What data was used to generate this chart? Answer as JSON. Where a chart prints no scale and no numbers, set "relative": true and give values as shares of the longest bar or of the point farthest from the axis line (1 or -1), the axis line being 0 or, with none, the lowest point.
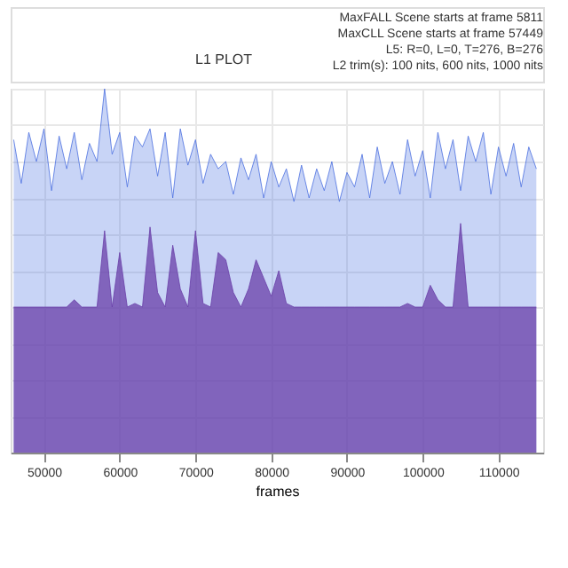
{
  "chart_data": {
    "type": "area",
    "title": "L1 PLOT",
    "xlabel": "frames",
    "relative": true,
    "grid": true,
    "annotations": [
      "MaxFALL Scene starts at frame 5811",
      "MaxCLL Scene starts at frame 57449",
      "L5: R=0, L=0, T=276, B=276",
      "L2 trim(s): 100 nits, 600 nits, 1000 nits"
    ],
    "xlim": [
      45600,
      115900
    ],
    "xticks": [
      50000,
      60000,
      70000,
      80000,
      90000,
      100000,
      110000
    ],
    "x": [
      46000,
      47000,
      48000,
      49000,
      50000,
      51000,
      52000,
      53000,
      54000,
      55000,
      56000,
      57000,
      58000,
      59000,
      60000,
      61000,
      62000,
      63000,
      64000,
      65000,
      66000,
      67000,
      68000,
      69000,
      70000,
      71000,
      72000,
      73000,
      74000,
      75000,
      76000,
      77000,
      78000,
      79000,
      80000,
      81000,
      82000,
      83000,
      84000,
      85000,
      86000,
      87000,
      88000,
      89000,
      90000,
      91000,
      92000,
      93000,
      94000,
      95000,
      96000,
      97000,
      98000,
      99000,
      100000,
      101000,
      102000,
      103000,
      104000,
      105000,
      106000,
      107000,
      108000,
      109000,
      110000,
      111000,
      112000,
      113000,
      114000,
      115000
    ],
    "series": [
      {
        "color": "#4a6fe0",
        "values": [
          0.86,
          0.74,
          0.88,
          0.8,
          0.89,
          0.72,
          0.87,
          0.78,
          0.88,
          0.75,
          0.85,
          0.8,
          1.0,
          0.82,
          0.88,
          0.73,
          0.87,
          0.84,
          0.89,
          0.76,
          0.88,
          0.7,
          0.89,
          0.79,
          0.86,
          0.74,
          0.82,
          0.78,
          0.8,
          0.71,
          0.81,
          0.75,
          0.82,
          0.7,
          0.8,
          0.73,
          0.78,
          0.69,
          0.79,
          0.7,
          0.78,
          0.72,
          0.8,
          0.69,
          0.77,
          0.73,
          0.82,
          0.7,
          0.84,
          0.74,
          0.8,
          0.71,
          0.86,
          0.76,
          0.83,
          0.7,
          0.88,
          0.78,
          0.86,
          0.72,
          0.87,
          0.8,
          0.88,
          0.71,
          0.84,
          0.76,
          0.85,
          0.73,
          0.84,
          0.78
        ]
      },
      {
        "color": "#6a3fa8",
        "values": [
          0.4,
          0.4,
          0.4,
          0.4,
          0.4,
          0.4,
          0.4,
          0.4,
          0.42,
          0.4,
          0.4,
          0.4,
          0.61,
          0.4,
          0.55,
          0.4,
          0.41,
          0.4,
          0.62,
          0.44,
          0.4,
          0.57,
          0.45,
          0.4,
          0.61,
          0.41,
          0.4,
          0.55,
          0.53,
          0.44,
          0.4,
          0.45,
          0.53,
          0.48,
          0.43,
          0.5,
          0.41,
          0.4,
          0.4,
          0.4,
          0.4,
          0.4,
          0.4,
          0.4,
          0.4,
          0.4,
          0.4,
          0.4,
          0.4,
          0.4,
          0.4,
          0.4,
          0.41,
          0.4,
          0.4,
          0.46,
          0.42,
          0.4,
          0.4,
          0.63,
          0.4,
          0.4,
          0.4,
          0.4,
          0.4,
          0.4,
          0.4,
          0.4,
          0.4,
          0.4
        ]
      }
    ]
  }
}
